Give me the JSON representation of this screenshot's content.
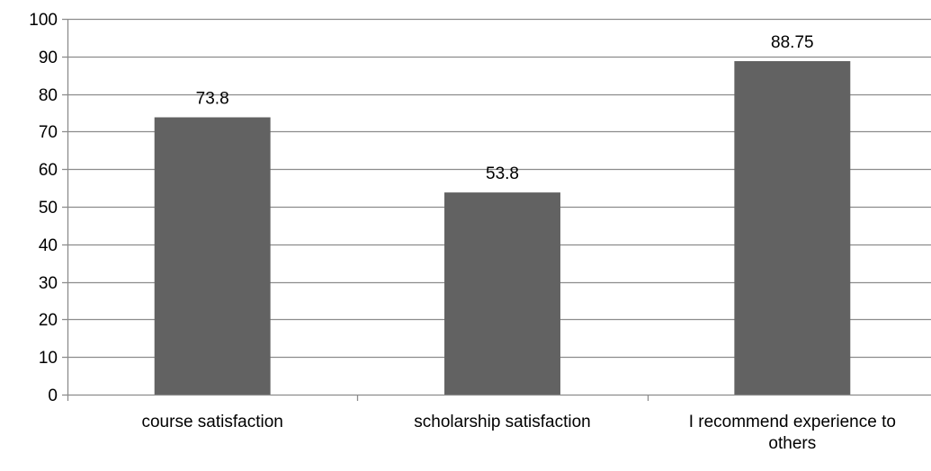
{
  "chart_data": {
    "type": "bar",
    "categories": [
      "course satisfaction",
      "scholarship satisfaction",
      "I recommend experience to others"
    ],
    "category_lines": [
      [
        "course satisfaction"
      ],
      [
        "scholarship satisfaction"
      ],
      [
        "I recommend experience to",
        "others"
      ]
    ],
    "values": [
      73.8,
      53.8,
      88.75
    ],
    "data_labels": [
      "73.8",
      "53.8",
      "88.75"
    ],
    "ylim": [
      0,
      100
    ],
    "yticks": [
      0,
      10,
      20,
      30,
      40,
      50,
      60,
      70,
      80,
      90,
      100
    ],
    "ytick_labels": [
      "0",
      "10",
      "20",
      "30",
      "40",
      "50",
      "60",
      "70",
      "80",
      "90",
      "100"
    ],
    "title": "",
    "xlabel": "",
    "ylabel": "",
    "grid": "horizontal",
    "legend": "none",
    "colors": {
      "bar": "#626262",
      "grid": "#8c8c8c",
      "axis": "#8c8c8c",
      "text": "#000000"
    }
  }
}
